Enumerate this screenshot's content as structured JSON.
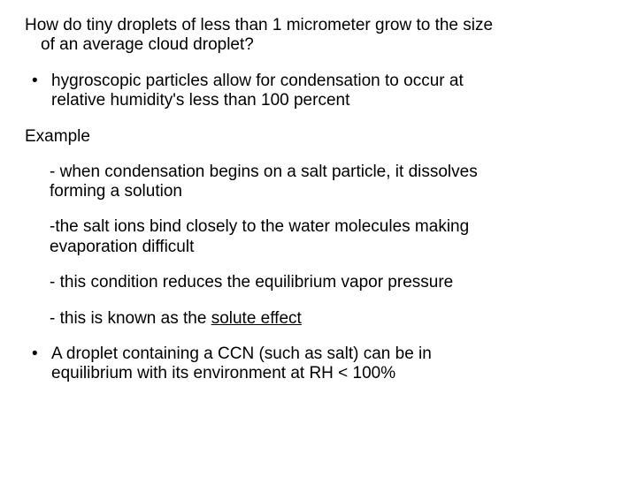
{
  "text_color": "#000000",
  "background_color": "#ffffff",
  "font_family": "Arial",
  "base_fontsize_pt": 14,
  "intro_line1": "How do tiny droplets of less than 1 micrometer grow to the size",
  "intro_line2": "of an average cloud droplet?",
  "bullet1_line1": " hygroscopic particles allow for condensation to occur at",
  "bullet1_line2": "relative humidity's less than 100 percent",
  "example_label": "Example",
  "sub1_line1": "- when condensation begins on a salt particle, it dissolves",
  "sub1_line2": "forming a solution",
  "sub2_line1": "-the salt ions bind closely to the water molecules making",
  "sub2_line2": "evaporation difficult",
  "sub3": "- this condition reduces the equilibrium vapor pressure",
  "sub4_prefix": "- this is known as the ",
  "sub4_underlined": "solute effect",
  "bullet2_line1": "A droplet containing a CCN (such as salt) can be in",
  "bullet2_line2": "equilibrium with its environment at RH < 100%",
  "bullet_glyph": "•"
}
